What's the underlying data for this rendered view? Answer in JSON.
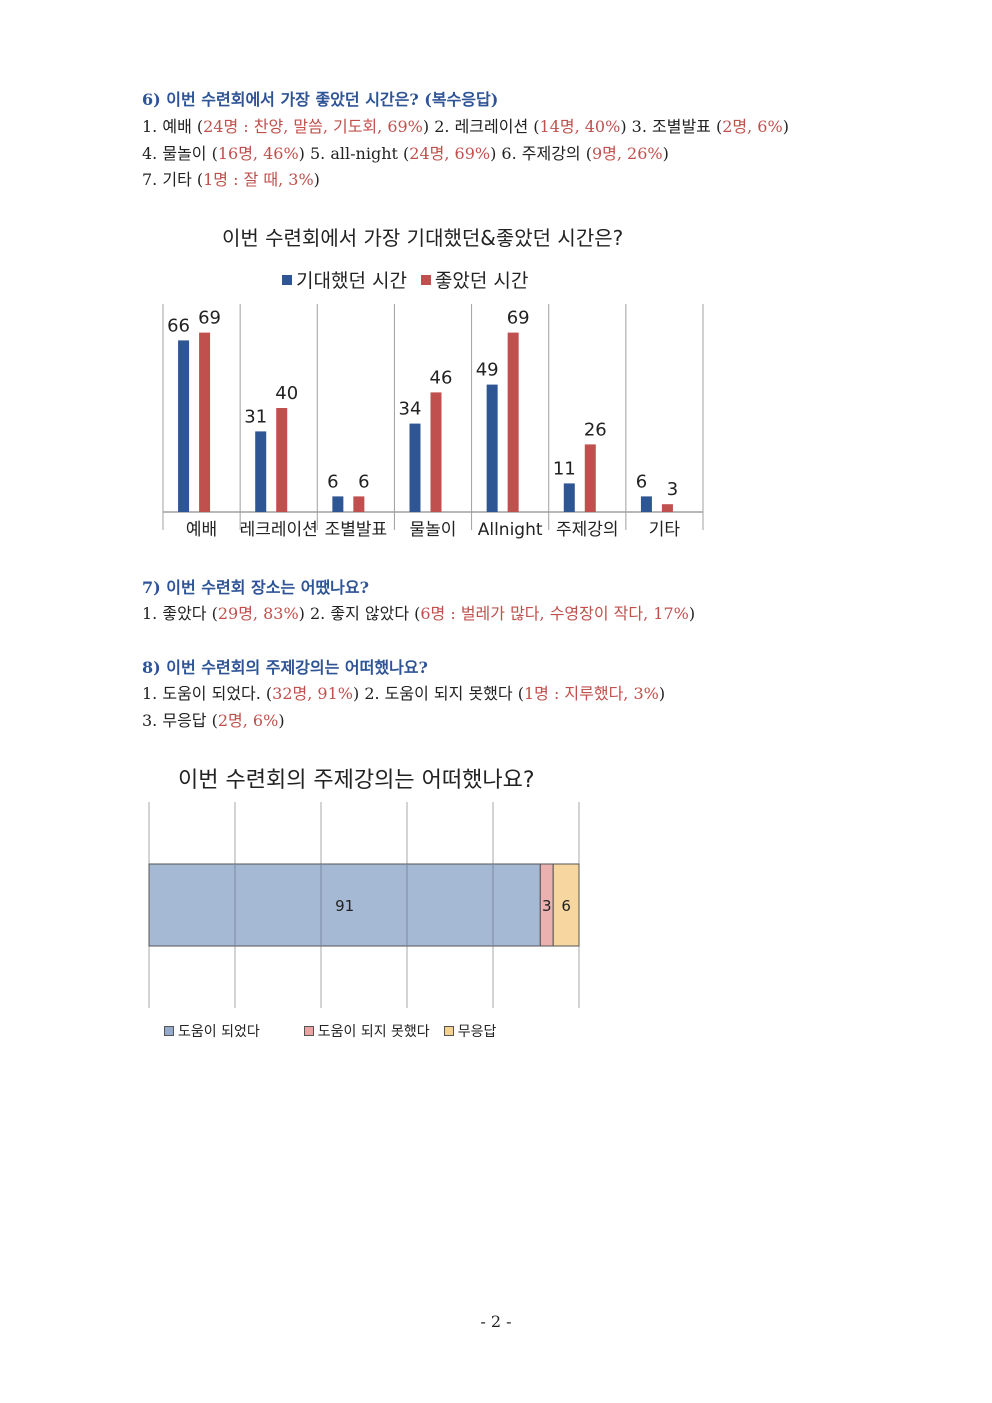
{
  "q6": {
    "title": "6) 이번 수련회에서 가장 좋았던 시간은? (복수응답)",
    "lines": [
      [
        {
          "t": "1. 예배 (",
          "c": ""
        },
        {
          "t": "24명 : 찬양, 말씀, 기도회, 69%",
          "c": "red"
        },
        {
          "t": ") 2. 레크레이션 (",
          "c": ""
        },
        {
          "t": "14명, 40%",
          "c": "red"
        },
        {
          "t": ") 3. 조별발표 (",
          "c": ""
        },
        {
          "t": "2명, 6%",
          "c": "red"
        },
        {
          "t": ")",
          "c": ""
        }
      ],
      [
        {
          "t": "4. 물놀이 (",
          "c": ""
        },
        {
          "t": "16명, 46%",
          "c": "red"
        },
        {
          "t": ") 5. all-night (",
          "c": ""
        },
        {
          "t": "24명, 69%",
          "c": "red"
        },
        {
          "t": ") 6. 주제강의 (",
          "c": ""
        },
        {
          "t": "9명, 26%",
          "c": "red"
        },
        {
          "t": ")",
          "c": ""
        }
      ],
      [
        {
          "t": "7. 기타 (",
          "c": ""
        },
        {
          "t": "1명 : 잘 때, 3%",
          "c": "red"
        },
        {
          "t": ")",
          "c": ""
        }
      ]
    ]
  },
  "q7": {
    "title": "7) 이번 수련회 장소는 어땠나요?",
    "lines": [
      [
        {
          "t": "1. 좋았다 (",
          "c": ""
        },
        {
          "t": "29명, 83%",
          "c": "red"
        },
        {
          "t": ") 2. 좋지 않았다 (",
          "c": ""
        },
        {
          "t": "6명 : 벌레가 많다, 수영장이 작다, 17%",
          "c": "red"
        },
        {
          "t": ")",
          "c": ""
        }
      ]
    ]
  },
  "q8": {
    "title": "8) 이번 수련회의 주제강의는 어떠했나요?",
    "lines": [
      [
        {
          "t": "1. 도움이 되었다. (",
          "c": ""
        },
        {
          "t": "32명, 91%",
          "c": "red"
        },
        {
          "t": ") 2. 도움이 되지 못했다 (",
          "c": ""
        },
        {
          "t": "1명 : 지루했다, 3%",
          "c": "red"
        },
        {
          "t": ")",
          "c": ""
        }
      ],
      [
        {
          "t": "3. 무응답 (",
          "c": ""
        },
        {
          "t": "2명, 6%",
          "c": "red"
        },
        {
          "t": ")",
          "c": ""
        }
      ]
    ]
  },
  "colors": {
    "text": "#222222",
    "question": "#2f5496",
    "answer": "#c0504d"
  },
  "chart_data": [
    {
      "type": "bar",
      "title": "이번 수련회에서 가장 기대했던&좋았던 시간은?",
      "categories": [
        "예배",
        "레크레이션",
        "조별발표",
        "물놀이",
        "Allnight",
        "주제강의",
        "기타"
      ],
      "series": [
        {
          "name": "기대했던 시간",
          "color": "#2e5594",
          "values": [
            66,
            31,
            6,
            34,
            49,
            11,
            6
          ]
        },
        {
          "name": "좋았던 시간",
          "color": "#c0504d",
          "values": [
            69,
            40,
            6,
            46,
            69,
            26,
            3
          ]
        }
      ],
      "ylim": [
        0,
        70
      ],
      "grid": "vertical separators",
      "legend": "top"
    },
    {
      "type": "bar",
      "orientation": "horizontal-stacked-100",
      "title": "이번 수련회의 주제강의는 어떠했나요?",
      "categories": [
        ""
      ],
      "series": [
        {
          "name": "도움이 되었다",
          "color": "#95abcd",
          "values": [
            91
          ]
        },
        {
          "name": "도움이 되지 못했다",
          "color": "#e8a3a2",
          "values": [
            3
          ]
        },
        {
          "name": "무응답",
          "color": "#f6d08e",
          "values": [
            6
          ]
        }
      ],
      "xlim": [
        0,
        100
      ],
      "grid": true,
      "legend": "bottom"
    }
  ],
  "page_number": "- 2 -"
}
